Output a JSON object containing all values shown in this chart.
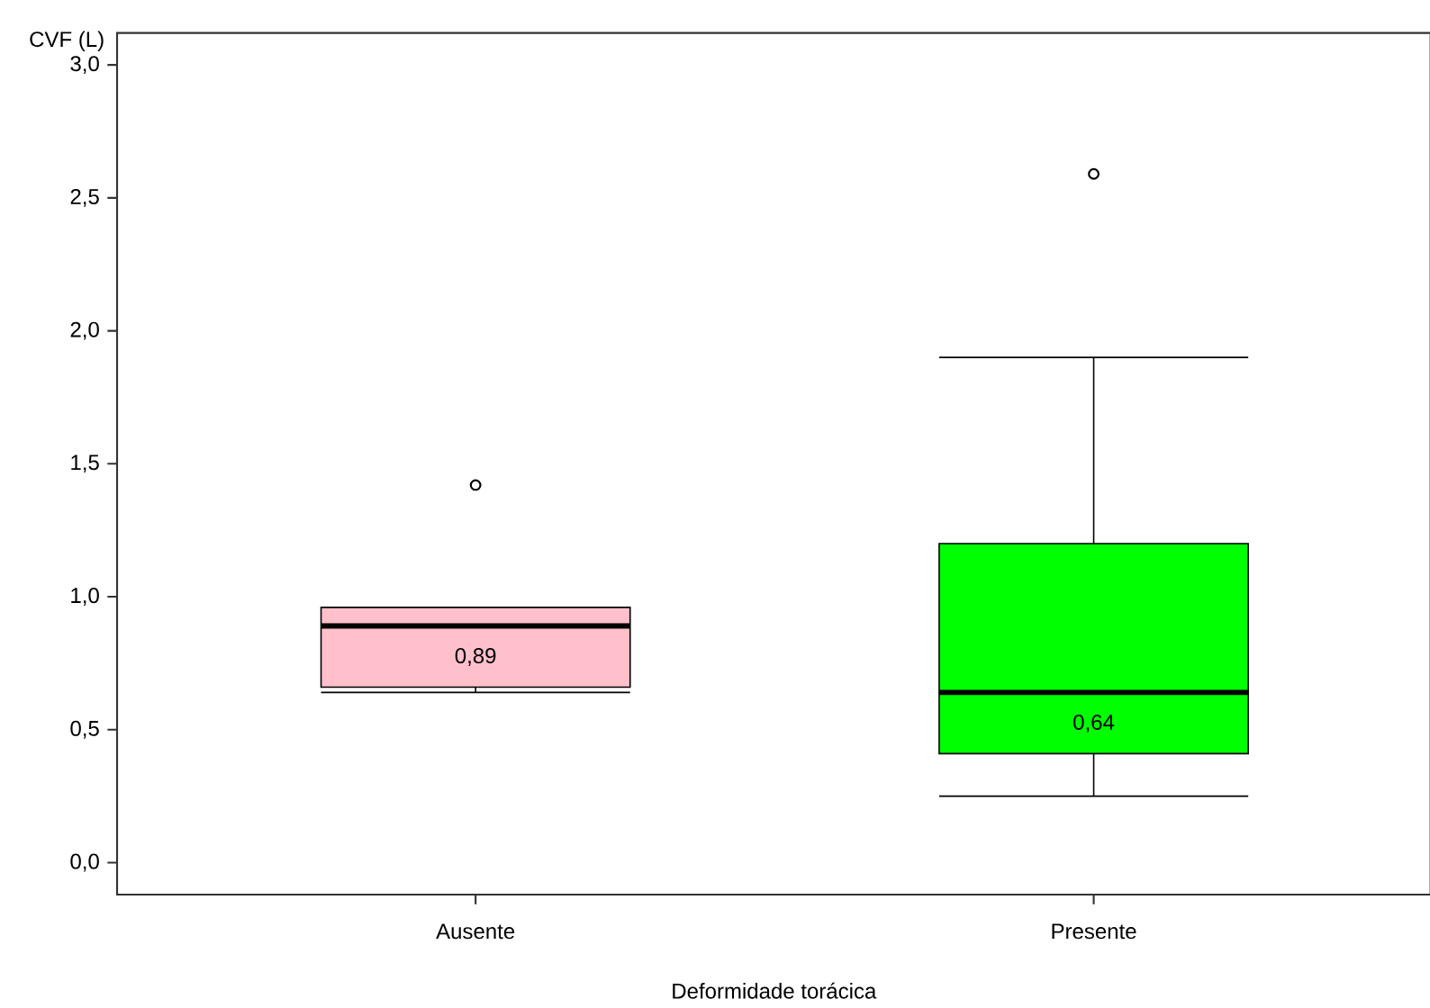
{
  "chart_data": {
    "type": "box",
    "xlabel": "Deformidade torácica",
    "ylabel": "CVF (L)",
    "categories": [
      "Ausente",
      "Presente"
    ],
    "colors": [
      "#ffc0cb",
      "#00ff00"
    ],
    "boxes": [
      {
        "low": 0.64,
        "q1": 0.66,
        "median": 0.89,
        "q3": 0.96,
        "high": 0.96,
        "outliers": [
          1.42
        ]
      },
      {
        "low": 0.25,
        "q1": 0.41,
        "median": 0.64,
        "q3": 1.2,
        "high": 1.9,
        "outliers": [
          2.59
        ]
      }
    ],
    "ylim": [
      -0.12,
      3.12
    ],
    "yticks": [
      {
        "value": 0,
        "label": "0,0"
      },
      {
        "value": 0.5,
        "label": "0,5"
      },
      {
        "value": 1,
        "label": "1,0"
      },
      {
        "value": 1.5,
        "label": "1,5"
      },
      {
        "value": 2,
        "label": "2,0"
      },
      {
        "value": 2.5,
        "label": "2,5"
      },
      {
        "value": 3,
        "label": "3,0"
      }
    ],
    "annotations": [
      {
        "text": "0,89",
        "x": "Ausente",
        "y": 0.89
      },
      {
        "text": "0,64",
        "x": "Presente",
        "y": 0.64
      }
    ],
    "tick_labels": true
  }
}
